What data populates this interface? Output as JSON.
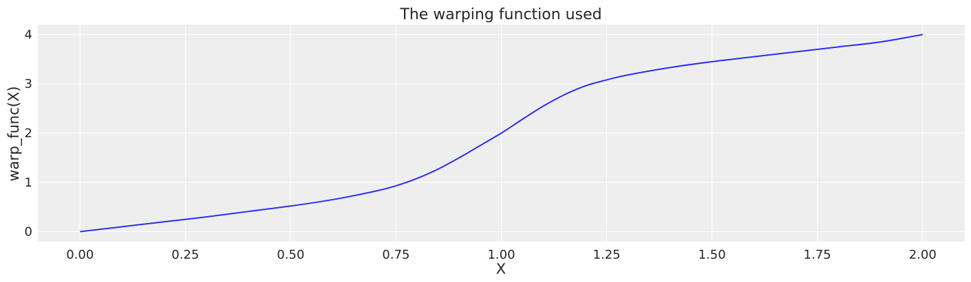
{
  "chart_data": {
    "type": "line",
    "title": "The warping function used",
    "xlabel": "X",
    "ylabel": "warp_func(X)",
    "xlim": [
      -0.1,
      2.1
    ],
    "ylim": [
      -0.2,
      4.2
    ],
    "xticks": [
      0.0,
      0.25,
      0.5,
      0.75,
      1.0,
      1.25,
      1.5,
      1.75,
      2.0
    ],
    "xtick_labels": [
      "0.00",
      "0.25",
      "0.50",
      "0.75",
      "1.00",
      "1.25",
      "1.50",
      "1.75",
      "2.00"
    ],
    "yticks": [
      0,
      1,
      2,
      3,
      4
    ],
    "ytick_labels": [
      "0",
      "1",
      "2",
      "3",
      "4"
    ],
    "grid": true,
    "background_color": "#eeeeee",
    "grid_color": "#ffffff",
    "series": [
      {
        "color": "#2a2eec",
        "x": [
          0.0,
          0.1,
          0.2,
          0.3,
          0.4,
          0.5,
          0.6,
          0.7,
          0.75,
          0.8,
          0.85,
          0.9,
          0.95,
          1.0,
          1.05,
          1.1,
          1.15,
          1.2,
          1.25,
          1.3,
          1.4,
          1.5,
          1.6,
          1.7,
          1.8,
          1.9,
          2.0
        ],
        "y": [
          0.0,
          0.1,
          0.2,
          0.3,
          0.41,
          0.52,
          0.65,
          0.82,
          0.93,
          1.08,
          1.27,
          1.5,
          1.75,
          2.0,
          2.28,
          2.55,
          2.78,
          2.96,
          3.08,
          3.18,
          3.33,
          3.45,
          3.55,
          3.65,
          3.75,
          3.85,
          4.0
        ]
      }
    ]
  }
}
